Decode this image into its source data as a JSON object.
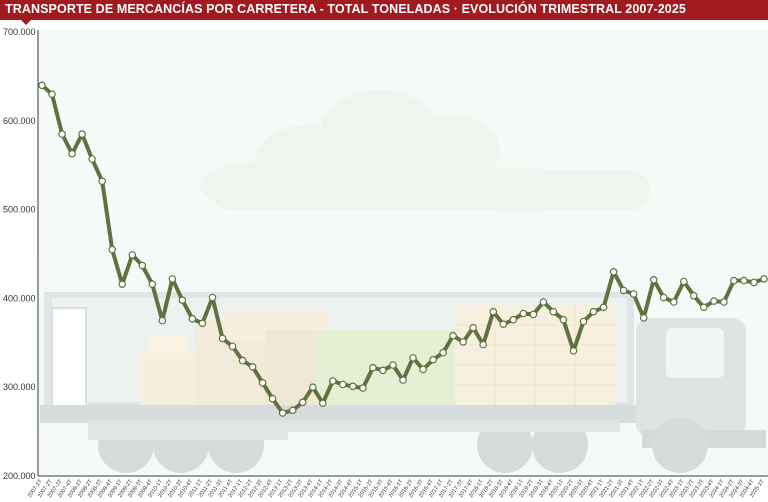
{
  "header": {
    "title": "TRANSPORTE DE MERCANCÍAS POR CARRETERA - TOTAL TONELADAS · EVOLUCIÓN TRIMESTRAL 2007-2025"
  },
  "colors": {
    "title_bar": "#a11a1f",
    "line": "#5e7340",
    "marker_fill": "#ffffff",
    "axis": "#3a3a3a",
    "background_tint": "#e6f0ee"
  },
  "chart_data": {
    "type": "line",
    "title": "TRANSPORTE DE MERCANCÍAS POR CARRETERA - TOTAL TONELADAS · EVOLUCIÓN TRIMESTRAL 2007-2025",
    "xlabel": "",
    "ylabel": "",
    "ylim": [
      200000,
      700000
    ],
    "yticks": [
      "200.000",
      "300.000",
      "400.000",
      "500.000",
      "600.000",
      "700.000"
    ],
    "ytick_values": [
      200000,
      300000,
      400000,
      500000,
      600000,
      700000
    ],
    "grid": false,
    "markers": "circle",
    "x": [
      "2007-1T",
      "2007-2T",
      "2007-3T",
      "2007-4T",
      "2008-1T",
      "2008-2T",
      "2008-3T",
      "2008-4T",
      "2009-1T",
      "2009-2T",
      "2009-3T",
      "2009-4T",
      "2010-1T",
      "2010-2T",
      "2010-3T",
      "2010-4T",
      "2011-1T",
      "2011-2T",
      "2011-3T",
      "2011-4T",
      "2012-1T",
      "2012-2T",
      "2012-3T",
      "2012-4T",
      "2013-1T",
      "2013-2T",
      "2013-3T",
      "2013-4T",
      "2014-1T",
      "2014-2T",
      "2014-3T",
      "2014-4T",
      "2015-1T",
      "2015-2T",
      "2015-3T",
      "2015-4T",
      "2016-1T",
      "2016-2T",
      "2016-3T",
      "2016-4T",
      "2017-1T",
      "2017-2T",
      "2017-3T",
      "2017-4T",
      "2018-1T",
      "2018-2T",
      "2018-3T",
      "2018-4T",
      "2019-1T",
      "2019-2T",
      "2019-3T",
      "2019-4T",
      "2020-1T",
      "2020-2T",
      "2020-3T",
      "2020-4T",
      "2021-1T",
      "2021-2T",
      "2021-3T",
      "2021-4T",
      "2022-1T",
      "2022-2T",
      "2022-3T",
      "2022-4T",
      "2023-1T",
      "2023-2T",
      "2023-3T",
      "2023-4T",
      "2024-1T",
      "2024-2T",
      "2024-3T",
      "2024-4T",
      "2025-1T"
    ],
    "series": [
      {
        "values": [
          640000,
          630000,
          585000,
          563000,
          585000,
          557000,
          532000,
          455000,
          416000,
          449000,
          437000,
          416000,
          375000,
          422000,
          398000,
          377000,
          372000,
          401000,
          355000,
          346000,
          330000,
          323000,
          305000,
          287000,
          271000,
          274000,
          283000,
          300000,
          282000,
          307000,
          303000,
          301000,
          299000,
          322000,
          319000,
          325000,
          308000,
          333000,
          320000,
          331000,
          339000,
          358000,
          351000,
          367000,
          348000,
          385000,
          371000,
          376000,
          383000,
          382000,
          396000,
          385000,
          376000,
          341000,
          374000,
          385000,
          390000,
          430000,
          409000,
          405000,
          378000,
          421000,
          401000,
          396000,
          419000,
          403000,
          390000,
          397000,
          396000,
          420000,
          420000,
          418000,
          422000
        ]
      }
    ],
    "x_tick_labels": [
      "2007-1T",
      "2007-2T",
      "2007-3T",
      "2007-4T",
      "2008-1T",
      "2008-2T",
      "2008-3T",
      "2008-4T",
      "2009-1T",
      "2009-2T",
      "2009-3T",
      "2009-4T",
      "2010-1T",
      "2010-2T",
      "2010-3T",
      "2010-4T",
      "2011-1T",
      "2011-2T",
      "2011-3T",
      "2011-4T",
      "2012-1T",
      "2012-2T",
      "2012-3T",
      "2012-4T",
      "2013-1T",
      "2013-2T",
      "2013-3T",
      "2013-4T",
      "2014-1T",
      "2014-2T",
      "2014-3T",
      "2014-4T",
      "2015-1T",
      "2015-2T",
      "2015-3T",
      "2015-4T",
      "2016-1T",
      "2016-2T",
      "2016-3T",
      "2016-4T",
      "2017-1T",
      "2017-2T",
      "2017-3T",
      "2017-4T",
      "2018-1T",
      "2018-2T",
      "2018-3T",
      "2018-4T",
      "2019-1T",
      "2019-2T",
      "2019-3T",
      "2019-4T",
      "2020-1T",
      "2020-2T",
      "2020-3T",
      "2020-4T",
      "2021-1T",
      "2021-2T",
      "2021-3T",
      "2021-4T",
      "2022-1T",
      "2022-2T",
      "2022-3T",
      "2022-4T",
      "2023-1T",
      "2023-2T",
      "2023-3T",
      "2023-4T",
      "2024-1T",
      "2024-2T",
      "2024-3T",
      "2024-4T",
      "2025-1T"
    ]
  }
}
